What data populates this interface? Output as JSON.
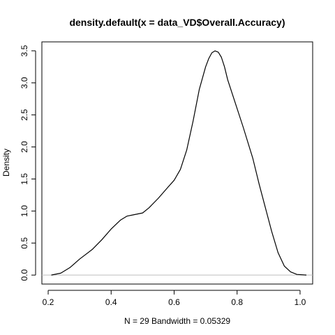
{
  "chart_data": {
    "type": "line",
    "title": "density.default(x = data_VD$Overall.Accuracy)",
    "xlabel": "N = 29   Bandwidth = 0.05329",
    "ylabel": "Density",
    "xlim": [
      0.18,
      1.04
    ],
    "ylim": [
      -0.14,
      3.64
    ],
    "x_ticks": [
      0.2,
      0.4,
      0.6,
      0.8,
      1.0
    ],
    "x_tick_labels": [
      "0.2",
      "0.4",
      "0.6",
      "0.8",
      "1.0"
    ],
    "y_ticks": [
      0.0,
      0.5,
      1.0,
      1.5,
      2.0,
      2.5,
      3.0,
      3.5
    ],
    "y_tick_labels": [
      "0.0",
      "0.5",
      "1.0",
      "1.5",
      "2.0",
      "2.5",
      "3.0",
      "3.5"
    ],
    "baseline": 0,
    "grid": false,
    "line_color": "#000000",
    "baseline_color": "#bebebe",
    "series": [
      {
        "x": [
          0.21,
          0.24,
          0.27,
          0.3,
          0.34,
          0.37,
          0.4,
          0.43,
          0.45,
          0.47,
          0.5,
          0.52,
          0.55,
          0.58,
          0.6,
          0.62,
          0.64,
          0.66,
          0.68,
          0.7,
          0.71,
          0.72,
          0.73,
          0.74,
          0.75,
          0.76,
          0.77,
          0.79,
          0.82,
          0.85,
          0.87,
          0.89,
          0.91,
          0.93,
          0.95,
          0.97,
          0.99,
          1.02
        ],
        "y": [
          0.0,
          0.03,
          0.12,
          0.25,
          0.4,
          0.55,
          0.72,
          0.86,
          0.92,
          0.94,
          0.97,
          1.05,
          1.2,
          1.37,
          1.48,
          1.65,
          1.95,
          2.4,
          2.9,
          3.25,
          3.38,
          3.47,
          3.5,
          3.48,
          3.4,
          3.25,
          3.05,
          2.75,
          2.3,
          1.82,
          1.42,
          1.05,
          0.68,
          0.35,
          0.14,
          0.05,
          0.01,
          0.0
        ]
      }
    ]
  }
}
